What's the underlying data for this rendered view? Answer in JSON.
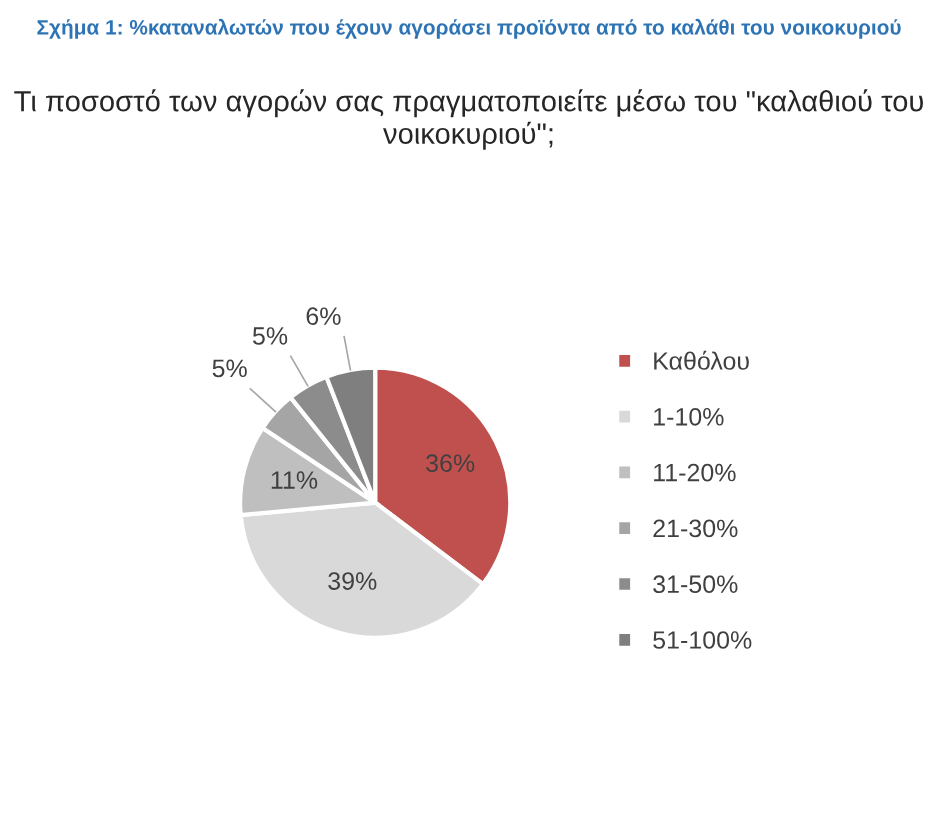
{
  "chart_data": {
    "type": "pie",
    "title": "Σχήμα 1: %καταναλωτών που έχουν αγοράσει προϊόντα από το καλάθι του νοικοκυριού",
    "subtitle": "Τι ποσοστό των αγορών σας πραγματοποιείτε μέσω του \"καλαθιού του νοικοκυριού\";",
    "categories": [
      "Καθόλου",
      "1-10%",
      "11-20%",
      "21-30%",
      "31-50%",
      "51-100%"
    ],
    "values": [
      36,
      39,
      11,
      5,
      5,
      6
    ],
    "colors": [
      "#c0504d",
      "#d9d9d9",
      "#bfbfbf",
      "#a5a5a5",
      "#8c8c8c",
      "#7f7f7f"
    ],
    "value_labels": [
      "36%",
      "39%",
      "11%",
      "5%",
      "5%",
      "6%"
    ],
    "legend": "right"
  }
}
